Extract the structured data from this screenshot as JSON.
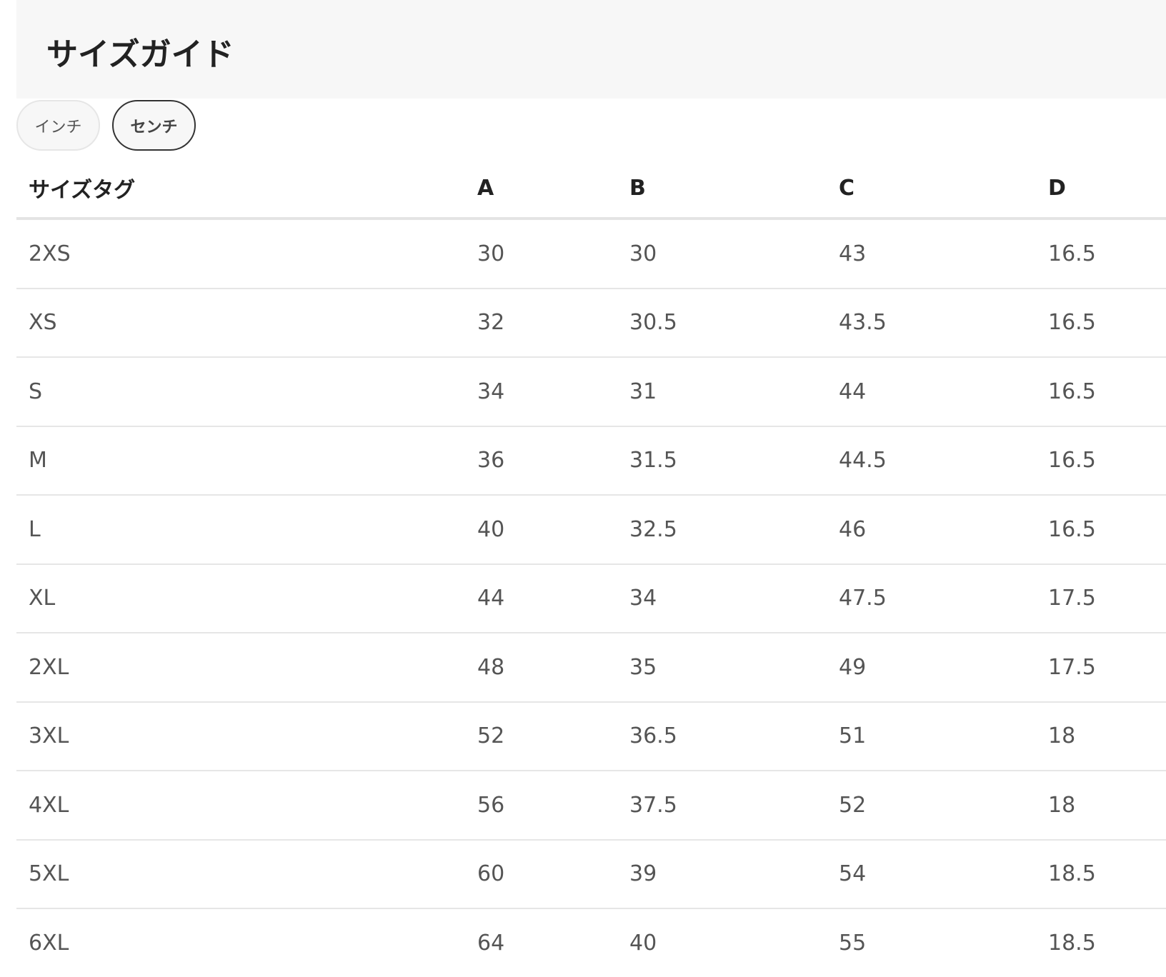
{
  "title": "サイズガイド",
  "units": [
    {
      "label": "インチ",
      "active": false
    },
    {
      "label": "センチ",
      "active": true
    }
  ],
  "table": {
    "headers": [
      "サイズタグ",
      "A",
      "B",
      "C",
      "D"
    ],
    "rows": [
      [
        "2XS",
        "30",
        "30",
        "43",
        "16.5"
      ],
      [
        "XS",
        "32",
        "30.5",
        "43.5",
        "16.5"
      ],
      [
        "S",
        "34",
        "31",
        "44",
        "16.5"
      ],
      [
        "M",
        "36",
        "31.5",
        "44.5",
        "16.5"
      ],
      [
        "L",
        "40",
        "32.5",
        "46",
        "16.5"
      ],
      [
        "XL",
        "44",
        "34",
        "47.5",
        "17.5"
      ],
      [
        "2XL",
        "48",
        "35",
        "49",
        "17.5"
      ],
      [
        "3XL",
        "52",
        "36.5",
        "51",
        "18"
      ],
      [
        "4XL",
        "56",
        "37.5",
        "52",
        "18"
      ],
      [
        "5XL",
        "60",
        "39",
        "54",
        "18.5"
      ],
      [
        "6XL",
        "64",
        "40",
        "55",
        "18.5"
      ]
    ]
  }
}
